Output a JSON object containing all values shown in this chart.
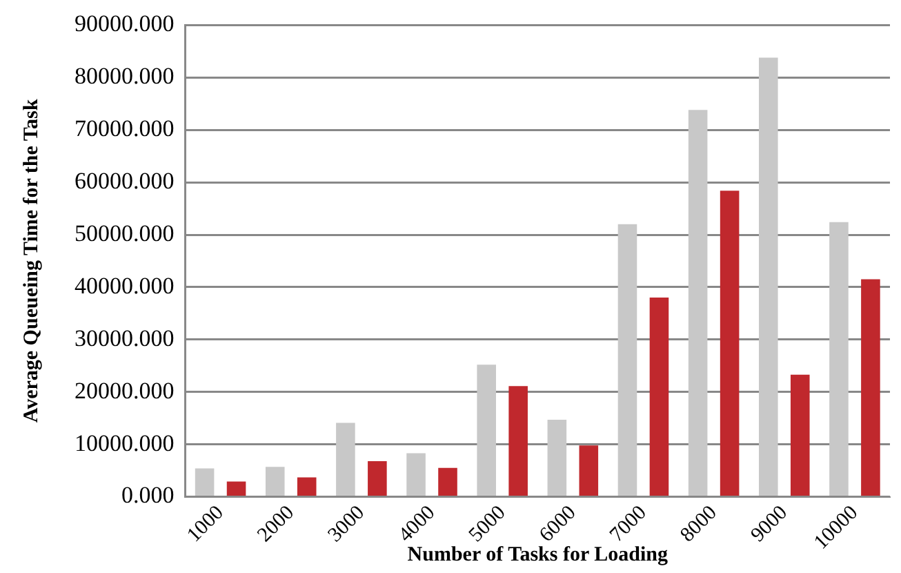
{
  "chart_data": {
    "type": "bar",
    "xlabel": "Number of Tasks for Loading",
    "ylabel": "Average Queueing Time for the Task",
    "categories": [
      "1000",
      "2000",
      "3000",
      "4000",
      "5000",
      "6000",
      "7000",
      "8000",
      "9000",
      "10000"
    ],
    "series": [
      {
        "color": "#c8c8c8",
        "values": [
          5400,
          5700,
          14100,
          8300,
          25200,
          14700,
          52000,
          73800,
          83800,
          52400
        ]
      },
      {
        "color": "#c0282d",
        "values": [
          2900,
          3700,
          6800,
          5500,
          21100,
          9800,
          38000,
          58400,
          23300,
          41500
        ]
      }
    ],
    "ylim": [
      0,
      90000
    ],
    "yticks": [
      {
        "value": 0,
        "label": "0.000"
      },
      {
        "value": 10000,
        "label": "10000.000"
      },
      {
        "value": 20000,
        "label": "20000.000"
      },
      {
        "value": 30000,
        "label": "30000.000"
      },
      {
        "value": 40000,
        "label": "40000.000"
      },
      {
        "value": 50000,
        "label": "50000.000"
      },
      {
        "value": 60000,
        "label": "60000.000"
      },
      {
        "value": 70000,
        "label": "70000.000"
      },
      {
        "value": 80000,
        "label": "80000.000"
      },
      {
        "value": 90000,
        "label": "90000.000"
      }
    ],
    "grid": "y",
    "legend": false
  }
}
